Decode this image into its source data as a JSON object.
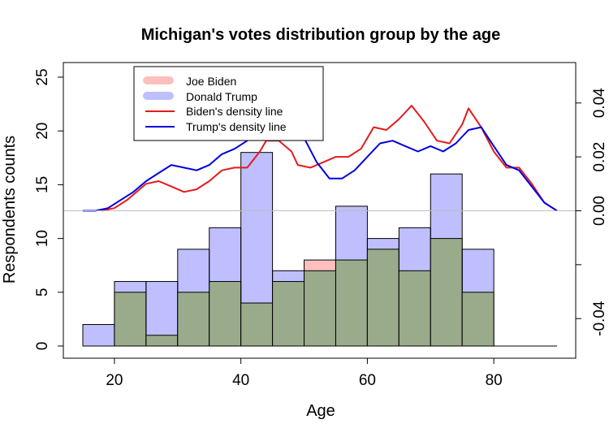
{
  "chart_data": {
    "type": "histogram",
    "title": "Michigan's votes distribution group by the age",
    "xlabel": "Age",
    "ylabel": "Respondents counts",
    "xlim": [
      15,
      90
    ],
    "ylim": [
      0,
      25
    ],
    "x_ticks": [
      20,
      40,
      60,
      80
    ],
    "y_ticks": [
      0,
      5,
      10,
      15,
      20,
      25
    ],
    "y2_lim": [
      -0.055,
      0.055
    ],
    "y2_ticks": [
      "-0.04",
      "0.00",
      "0.02",
      "0.04"
    ],
    "y2_tick_values": [
      -0.04,
      0.0,
      0.02,
      0.04
    ],
    "bin_edges": [
      15,
      20,
      25,
      30,
      35,
      40,
      45,
      50,
      55,
      60,
      65,
      70,
      75,
      80,
      85,
      90
    ],
    "series": [
      {
        "name": "Joe Biden",
        "color": "#ff000040",
        "values": [
          0,
          5,
          1,
          5,
          6,
          4,
          6,
          8,
          8,
          9,
          7,
          10,
          5,
          0,
          0
        ]
      },
      {
        "name": "Donald Trump",
        "color": "#0000ff40",
        "values": [
          2,
          6,
          6,
          9,
          11,
          18,
          7,
          7,
          13,
          10,
          11,
          16,
          9,
          0,
          0
        ]
      },
      {
        "name": "Biden's density line",
        "color": "#e41a1c",
        "x": [
          18,
          20,
          22,
          25,
          27,
          29,
          31,
          33,
          35,
          37,
          39,
          41,
          43,
          44,
          46,
          48,
          49,
          51,
          53,
          55,
          57,
          59,
          61,
          63,
          65,
          67,
          69,
          71,
          73,
          75,
          76,
          78,
          80,
          82,
          84,
          86,
          88,
          90
        ],
        "y": [
          0.0,
          0.001,
          0.004,
          0.01,
          0.011,
          0.009,
          0.007,
          0.008,
          0.011,
          0.015,
          0.016,
          0.016,
          0.022,
          0.026,
          0.026,
          0.022,
          0.017,
          0.016,
          0.018,
          0.02,
          0.02,
          0.023,
          0.031,
          0.03,
          0.034,
          0.039,
          0.033,
          0.026,
          0.025,
          0.032,
          0.038,
          0.031,
          0.022,
          0.016,
          0.016,
          0.01,
          0.003,
          0.0
        ]
      },
      {
        "name": "Trump's density line",
        "color": "#0000e0",
        "x": [
          15,
          17,
          19,
          21,
          23,
          25,
          27,
          29,
          31,
          33,
          35,
          37,
          39,
          41,
          43,
          45,
          47,
          48,
          50,
          52,
          54,
          56,
          58,
          60,
          62,
          64,
          66,
          68,
          70,
          72,
          74,
          76,
          78,
          80,
          82,
          84,
          86,
          88,
          90
        ],
        "y": [
          0.0,
          0.0,
          0.001,
          0.004,
          0.007,
          0.011,
          0.014,
          0.017,
          0.016,
          0.015,
          0.017,
          0.021,
          0.023,
          0.026,
          0.031,
          0.036,
          0.037,
          0.035,
          0.027,
          0.018,
          0.012,
          0.012,
          0.015,
          0.02,
          0.025,
          0.026,
          0.024,
          0.022,
          0.024,
          0.022,
          0.025,
          0.03,
          0.031,
          0.024,
          0.017,
          0.015,
          0.009,
          0.003,
          0.0
        ]
      }
    ],
    "overlap_color": "#9aab8c",
    "legend_position": "top-left",
    "grid": false
  }
}
